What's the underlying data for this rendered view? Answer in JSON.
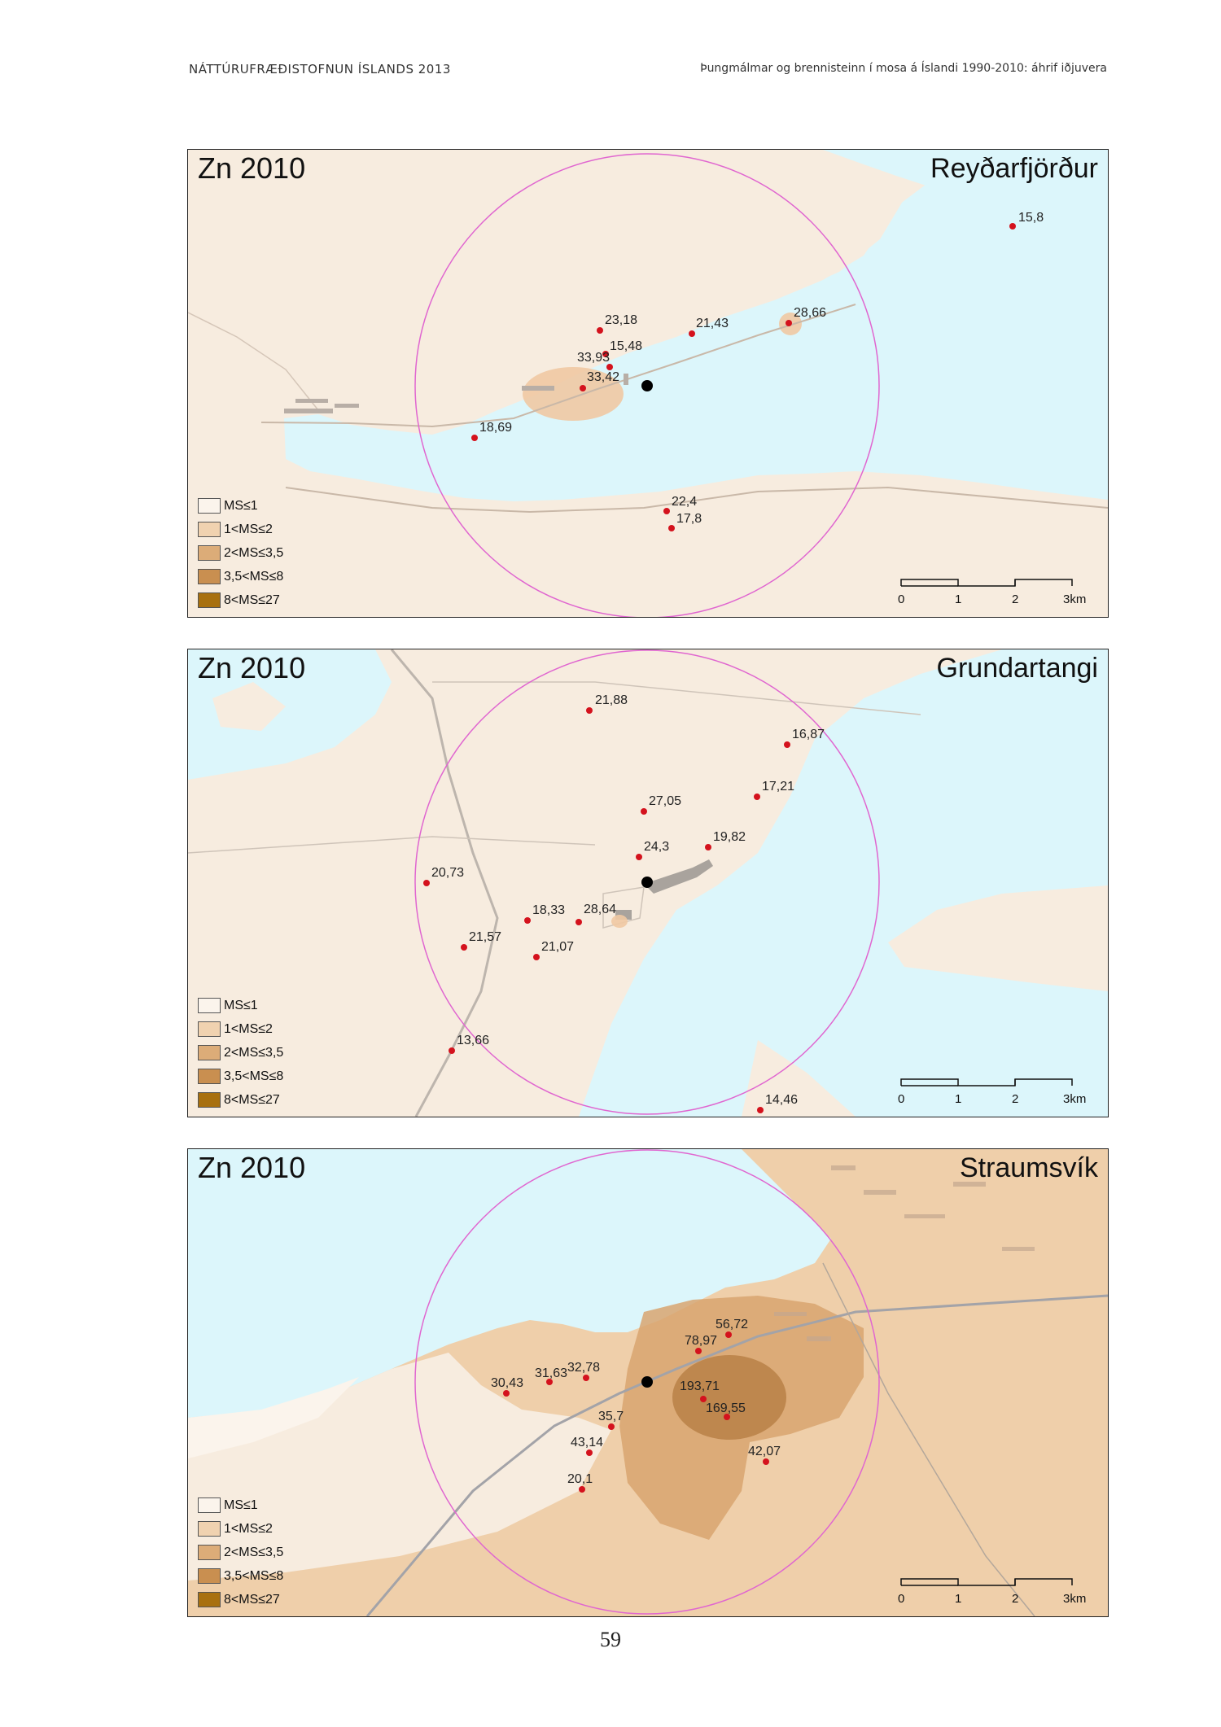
{
  "header": {
    "left": "NÁTTÚRUFRÆÐISTOFNUN ÍSLANDS 2013",
    "right": "Þungmálmar og brennisteinn í mosa á Íslandi 1990-2010: áhrif iðjuvera"
  },
  "legend": {
    "items": [
      {
        "label": "MS≤1",
        "color": "#fbf4ec"
      },
      {
        "label": "1<MS≤2",
        "color": "#f0d2b0"
      },
      {
        "label": "2<MS≤3,5",
        "color": "#dcac78"
      },
      {
        "label": "3,5<MS≤8",
        "color": "#c98f50"
      },
      {
        "label": "8<MS≤27",
        "color": "#a8700f"
      }
    ]
  },
  "scalebar": {
    "labels": [
      "0",
      "1",
      "2",
      "3km"
    ]
  },
  "colors": {
    "water": "#dcf6fb",
    "land": "#f7ecdf",
    "circle": "#e066d0",
    "point": "#d4121d",
    "source": "#000000"
  },
  "maps": [
    {
      "title": "Zn 2010",
      "place": "Reyðarfjörður",
      "points": [
        {
          "label": "15,8"
        },
        {
          "label": "28,66"
        },
        {
          "label": "21,43"
        },
        {
          "label": "23,18"
        },
        {
          "label": "15,48"
        },
        {
          "label": "33,93"
        },
        {
          "label": "33,42"
        },
        {
          "label": "18,69"
        },
        {
          "label": "22,4"
        },
        {
          "label": "17,8"
        }
      ]
    },
    {
      "title": "Zn 2010",
      "place": "Grundartangi",
      "points": [
        {
          "label": "21,88"
        },
        {
          "label": "16,87"
        },
        {
          "label": "17,21"
        },
        {
          "label": "27,05"
        },
        {
          "label": "19,82"
        },
        {
          "label": "24,3"
        },
        {
          "label": "20,73"
        },
        {
          "label": "18,33"
        },
        {
          "label": "28,64"
        },
        {
          "label": "21,57"
        },
        {
          "label": "21,07"
        },
        {
          "label": "13,66"
        },
        {
          "label": "14,46"
        }
      ]
    },
    {
      "title": "Zn 2010",
      "place": "Straumsvík",
      "points": [
        {
          "label": "56,72"
        },
        {
          "label": "78,97"
        },
        {
          "label": "32,78"
        },
        {
          "label": "31,63"
        },
        {
          "label": "30,43"
        },
        {
          "label": "193,71"
        },
        {
          "label": "169,55"
        },
        {
          "label": "35,7"
        },
        {
          "label": "43,14"
        },
        {
          "label": "42,07"
        },
        {
          "label": "20,1"
        }
      ]
    }
  ],
  "page_number": "59"
}
